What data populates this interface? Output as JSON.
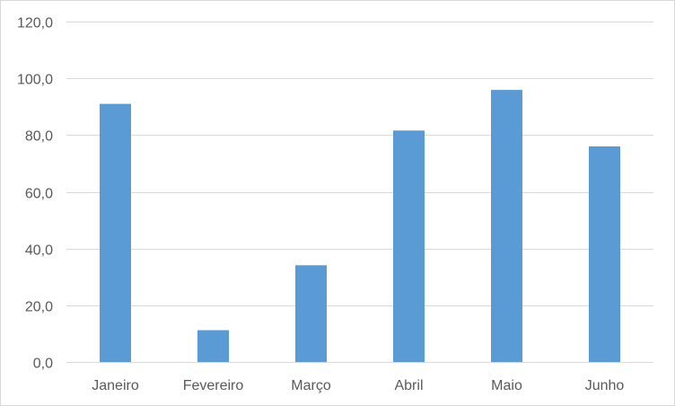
{
  "chart_data": {
    "type": "bar",
    "title": "",
    "xlabel": "",
    "ylabel": "",
    "categories": [
      "Janeiro",
      "Fevereiro",
      "Março",
      "Abril",
      "Maio",
      "Junho"
    ],
    "values": [
      91.0,
      11.2,
      34.1,
      81.6,
      95.9,
      76.0
    ],
    "ylim": [
      0,
      120
    ],
    "yticks": [
      0,
      20,
      40,
      60,
      80,
      100,
      120
    ],
    "ytick_labels": [
      "0,0",
      "20,0",
      "40,0",
      "60,0",
      "80,0",
      "100,0",
      "120,0"
    ],
    "grid": true,
    "legend": "none",
    "colors": {
      "bar": "#5b9bd5",
      "grid": "#d9d9d9",
      "text": "#595959"
    }
  }
}
